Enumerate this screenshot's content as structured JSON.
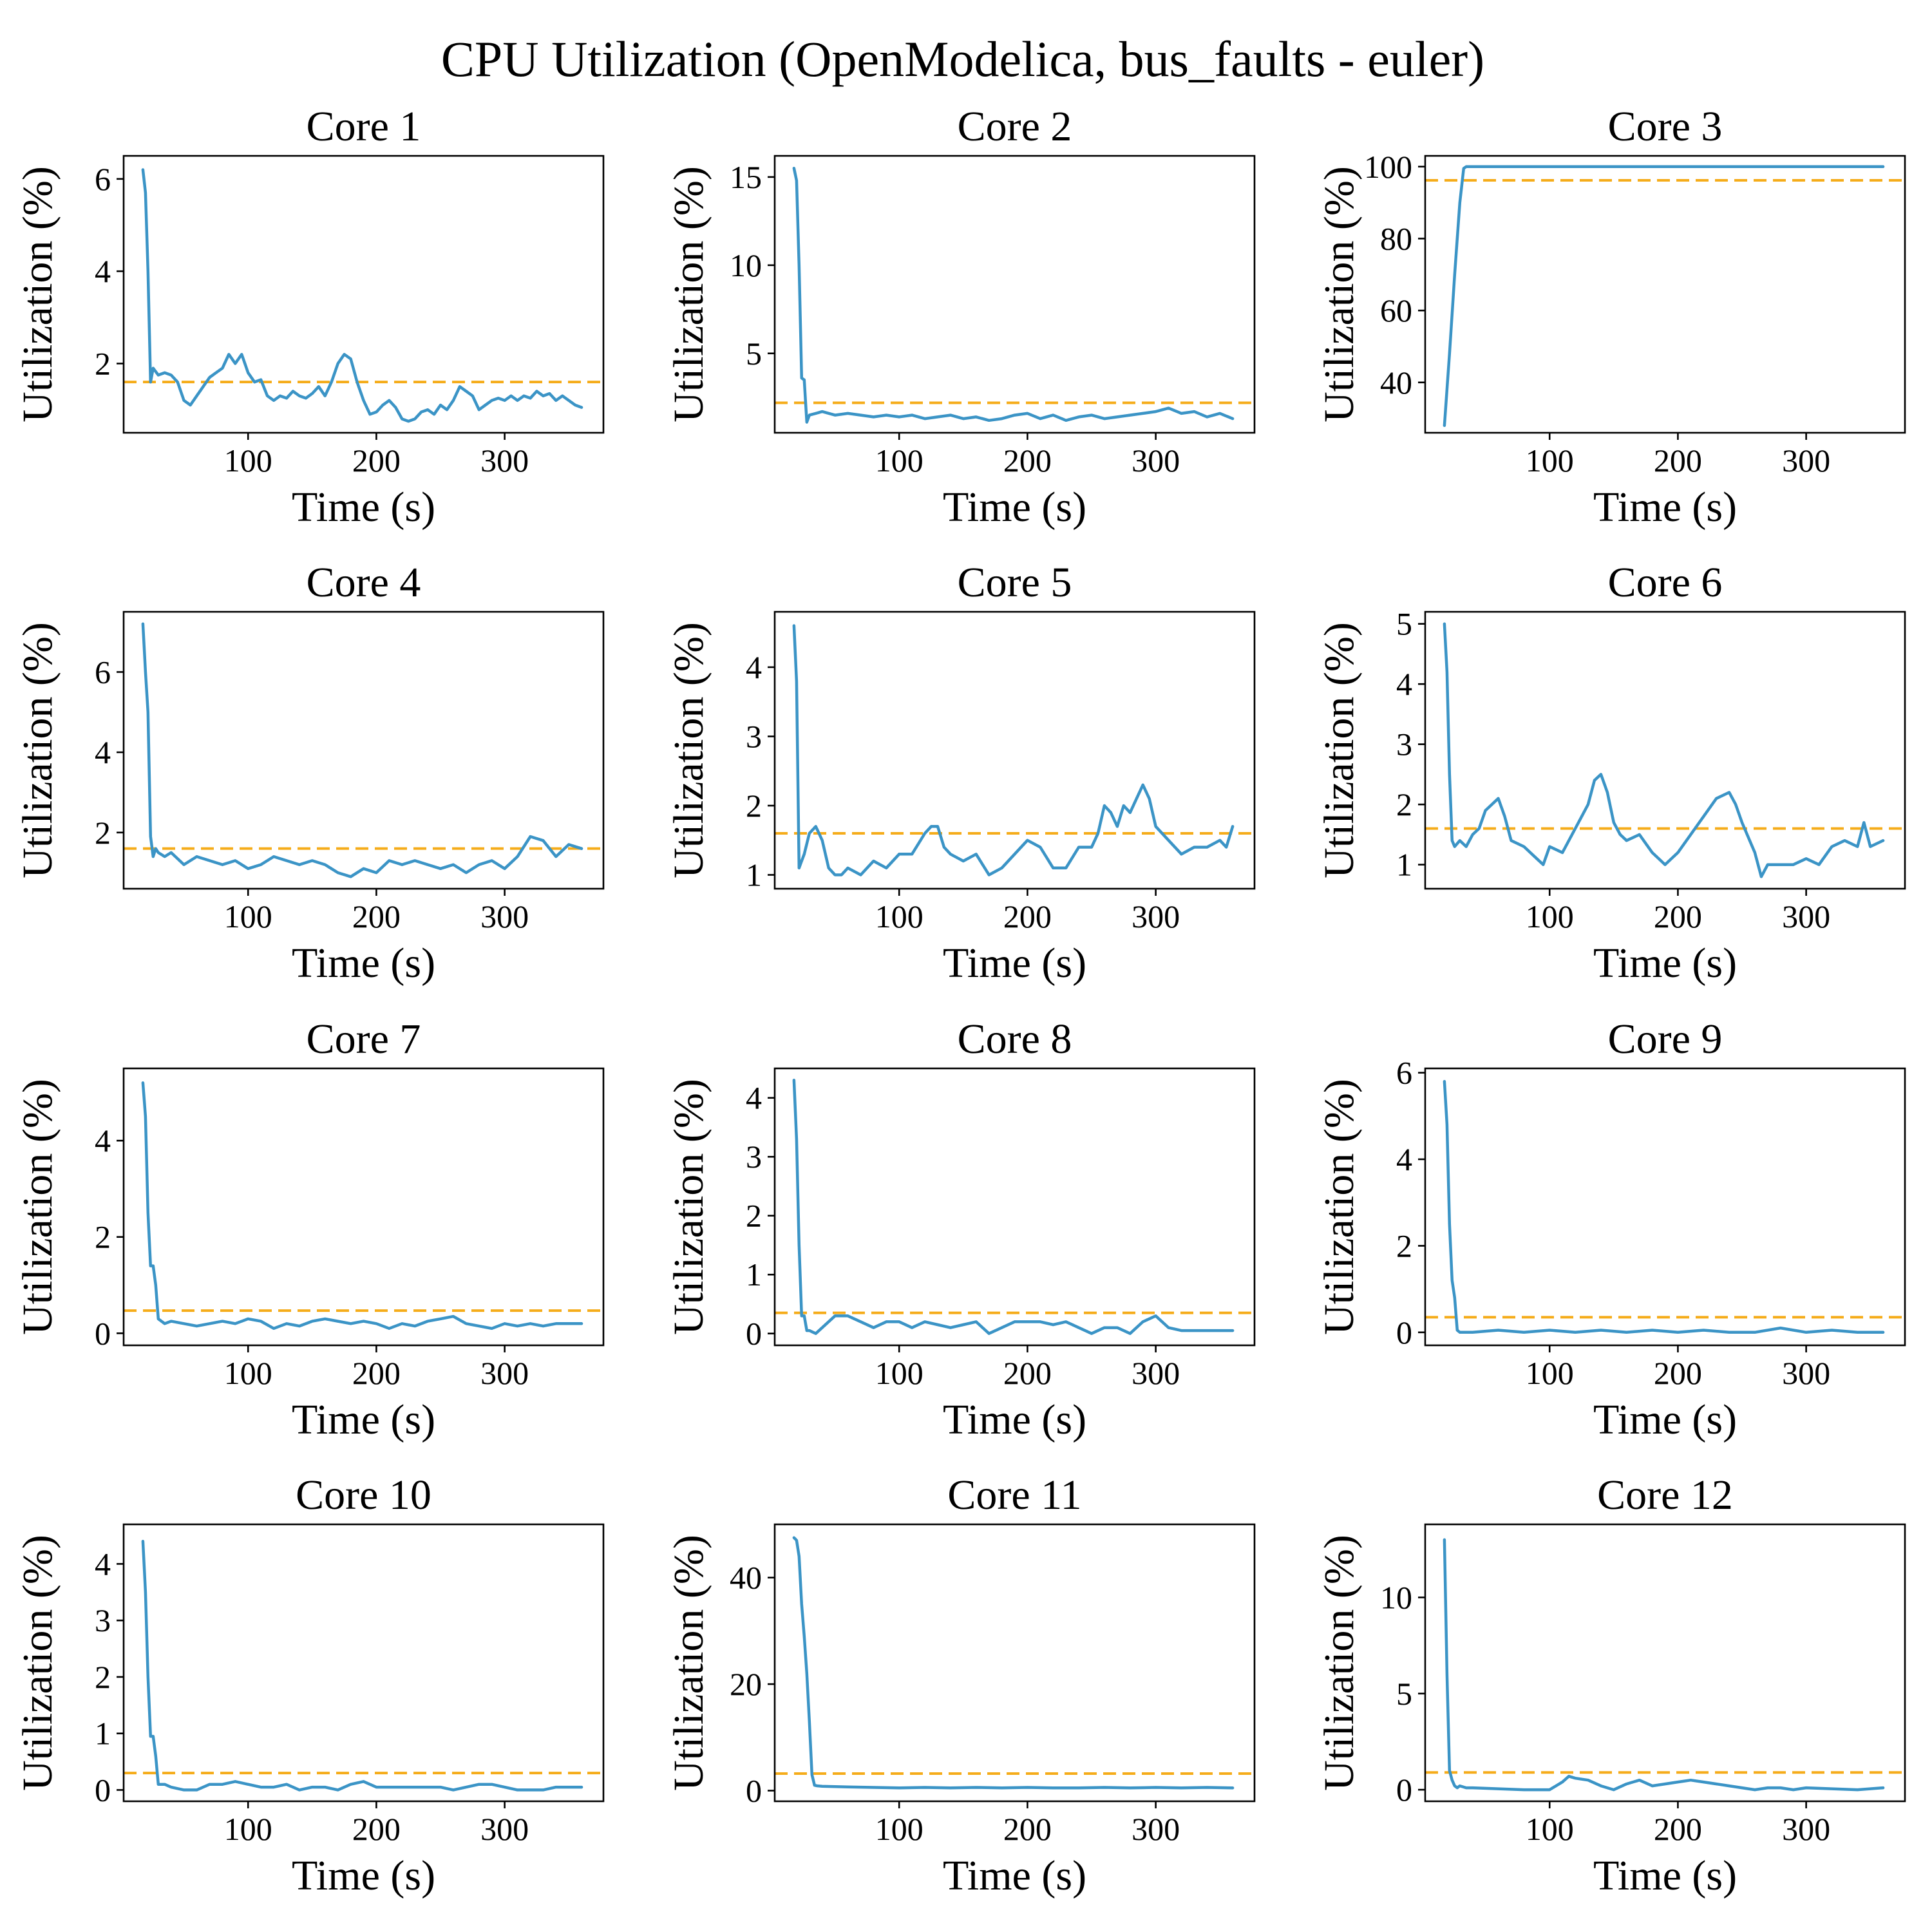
{
  "figure": {
    "title": "CPU Utilization (OpenModelica, bus_faults - euler)"
  },
  "colors": {
    "series": "#3b94c6",
    "mean": "#f5ac1a"
  },
  "chart_data": [
    {
      "type": "line",
      "title": "Core 1",
      "xlabel": "Time (s)",
      "ylabel": "Utilization (%)",
      "xlim": [
        3,
        377
      ],
      "ylim": [
        0.5,
        6.5
      ],
      "xticks": [
        100,
        200,
        300
      ],
      "yticks": [
        2,
        4,
        6
      ],
      "mean": 1.6,
      "x": [
        18,
        20,
        22,
        24,
        26,
        30,
        35,
        40,
        45,
        50,
        55,
        60,
        65,
        70,
        75,
        80,
        85,
        90,
        95,
        100,
        105,
        110,
        115,
        120,
        125,
        130,
        135,
        140,
        145,
        150,
        155,
        160,
        165,
        170,
        175,
        180,
        185,
        190,
        195,
        200,
        205,
        210,
        215,
        220,
        225,
        230,
        235,
        240,
        245,
        250,
        255,
        260,
        265,
        270,
        275,
        280,
        285,
        290,
        295,
        300,
        305,
        310,
        315,
        320,
        325,
        330,
        335,
        340,
        345,
        350,
        355,
        360
      ],
      "y": [
        6.2,
        5.7,
        4.0,
        1.6,
        1.9,
        1.75,
        1.8,
        1.75,
        1.6,
        1.2,
        1.1,
        1.3,
        1.5,
        1.7,
        1.8,
        1.9,
        2.2,
        2.0,
        2.2,
        1.8,
        1.6,
        1.65,
        1.3,
        1.2,
        1.3,
        1.25,
        1.4,
        1.3,
        1.25,
        1.35,
        1.5,
        1.3,
        1.6,
        2.0,
        2.2,
        2.1,
        1.6,
        1.2,
        0.9,
        0.95,
        1.1,
        1.2,
        1.05,
        0.8,
        0.75,
        0.8,
        0.95,
        1.0,
        0.9,
        1.1,
        1.0,
        1.2,
        1.5,
        1.4,
        1.3,
        1.0,
        1.1,
        1.2,
        1.25,
        1.2,
        1.3,
        1.2,
        1.3,
        1.25,
        1.4,
        1.3,
        1.35,
        1.2,
        1.3,
        1.2,
        1.1,
        1.05
      ]
    },
    {
      "type": "line",
      "title": "Core 2",
      "xlabel": "Time (s)",
      "ylabel": "Utilization (%)",
      "xlim": [
        3,
        377
      ],
      "ylim": [
        0.5,
        16.2
      ],
      "xticks": [
        100,
        200,
        300
      ],
      "yticks": [
        5,
        10,
        15
      ],
      "mean": 2.2,
      "x": [
        18,
        20,
        22,
        24,
        26,
        28,
        30,
        35,
        40,
        50,
        60,
        70,
        80,
        90,
        100,
        110,
        120,
        130,
        140,
        150,
        160,
        170,
        180,
        190,
        200,
        210,
        220,
        230,
        240,
        250,
        260,
        270,
        280,
        290,
        300,
        310,
        320,
        330,
        340,
        350,
        360
      ],
      "y": [
        15.5,
        14.8,
        10.0,
        3.6,
        3.5,
        1.1,
        1.5,
        1.6,
        1.7,
        1.5,
        1.6,
        1.5,
        1.4,
        1.5,
        1.4,
        1.5,
        1.3,
        1.4,
        1.5,
        1.3,
        1.4,
        1.2,
        1.3,
        1.5,
        1.6,
        1.3,
        1.5,
        1.2,
        1.4,
        1.5,
        1.3,
        1.4,
        1.5,
        1.6,
        1.7,
        1.9,
        1.6,
        1.7,
        1.4,
        1.6,
        1.3
      ]
    },
    {
      "type": "line",
      "title": "Core 3",
      "xlabel": "Time (s)",
      "ylabel": "Utilization (%)",
      "xlim": [
        3,
        377
      ],
      "ylim": [
        26,
        103
      ],
      "xticks": [
        100,
        200,
        300
      ],
      "yticks": [
        40,
        60,
        80,
        100
      ],
      "mean": 96.2,
      "x": [
        18,
        22,
        26,
        30,
        33,
        35,
        40,
        60,
        100,
        150,
        200,
        250,
        300,
        360
      ],
      "y": [
        28,
        48,
        70,
        90,
        99.5,
        100,
        100,
        100,
        100,
        100,
        100,
        100,
        100,
        100
      ]
    },
    {
      "type": "line",
      "title": "Core 4",
      "xlabel": "Time (s)",
      "ylabel": "Utilization (%)",
      "xlim": [
        3,
        377
      ],
      "ylim": [
        0.6,
        7.5
      ],
      "xticks": [
        100,
        200,
        300
      ],
      "yticks": [
        2,
        4,
        6
      ],
      "mean": 1.6,
      "x": [
        18,
        20,
        22,
        24,
        26,
        28,
        30,
        35,
        40,
        50,
        60,
        70,
        80,
        90,
        100,
        110,
        120,
        130,
        140,
        150,
        160,
        170,
        180,
        190,
        200,
        210,
        220,
        230,
        240,
        250,
        260,
        270,
        280,
        290,
        300,
        310,
        320,
        330,
        340,
        350,
        360
      ],
      "y": [
        7.2,
        6.0,
        5.0,
        1.9,
        1.4,
        1.6,
        1.5,
        1.4,
        1.5,
        1.2,
        1.4,
        1.3,
        1.2,
        1.3,
        1.1,
        1.2,
        1.4,
        1.3,
        1.2,
        1.3,
        1.2,
        1.0,
        0.9,
        1.1,
        1.0,
        1.3,
        1.2,
        1.3,
        1.2,
        1.1,
        1.2,
        1.0,
        1.2,
        1.3,
        1.1,
        1.4,
        1.9,
        1.8,
        1.4,
        1.7,
        1.6
      ]
    },
    {
      "type": "line",
      "title": "Core 5",
      "xlabel": "Time (s)",
      "ylabel": "Utilization (%)",
      "xlim": [
        3,
        377
      ],
      "ylim": [
        0.8,
        4.8
      ],
      "xticks": [
        100,
        200,
        300
      ],
      "yticks": [
        1,
        2,
        3,
        4
      ],
      "mean": 1.6,
      "x": [
        18,
        20,
        22,
        24,
        26,
        30,
        35,
        40,
        45,
        50,
        55,
        60,
        70,
        80,
        90,
        100,
        110,
        120,
        125,
        130,
        135,
        140,
        150,
        160,
        170,
        180,
        190,
        200,
        210,
        220,
        230,
        240,
        250,
        255,
        260,
        265,
        270,
        275,
        280,
        285,
        290,
        295,
        300,
        310,
        320,
        330,
        340,
        350,
        355,
        360
      ],
      "y": [
        4.6,
        3.8,
        1.1,
        1.2,
        1.3,
        1.6,
        1.7,
        1.5,
        1.1,
        1.0,
        1.0,
        1.1,
        1.0,
        1.2,
        1.1,
        1.3,
        1.3,
        1.6,
        1.7,
        1.7,
        1.4,
        1.3,
        1.2,
        1.3,
        1.0,
        1.1,
        1.3,
        1.5,
        1.4,
        1.1,
        1.1,
        1.4,
        1.4,
        1.6,
        2.0,
        1.9,
        1.7,
        2.0,
        1.9,
        2.1,
        2.3,
        2.1,
        1.7,
        1.5,
        1.3,
        1.4,
        1.4,
        1.5,
        1.4,
        1.7
      ]
    },
    {
      "type": "line",
      "title": "Core 6",
      "xlabel": "Time (s)",
      "ylabel": "Utilization (%)",
      "xlim": [
        3,
        377
      ],
      "ylim": [
        0.6,
        5.2
      ],
      "xticks": [
        100,
        200,
        300
      ],
      "yticks": [
        1,
        2,
        3,
        4,
        5
      ],
      "mean": 1.6,
      "x": [
        18,
        20,
        22,
        24,
        26,
        30,
        35,
        40,
        45,
        50,
        55,
        60,
        65,
        70,
        80,
        90,
        95,
        100,
        110,
        120,
        130,
        135,
        140,
        145,
        150,
        155,
        160,
        170,
        180,
        190,
        200,
        210,
        220,
        230,
        240,
        245,
        250,
        260,
        265,
        270,
        280,
        290,
        300,
        310,
        320,
        330,
        340,
        345,
        350,
        360
      ],
      "y": [
        5.0,
        4.2,
        2.5,
        1.4,
        1.3,
        1.4,
        1.3,
        1.5,
        1.6,
        1.9,
        2.0,
        2.1,
        1.8,
        1.4,
        1.3,
        1.1,
        1.0,
        1.3,
        1.2,
        1.6,
        2.0,
        2.4,
        2.5,
        2.2,
        1.7,
        1.5,
        1.4,
        1.5,
        1.2,
        1.0,
        1.2,
        1.5,
        1.8,
        2.1,
        2.2,
        2.0,
        1.7,
        1.2,
        0.8,
        1.0,
        1.0,
        1.0,
        1.1,
        1.0,
        1.3,
        1.4,
        1.3,
        1.7,
        1.3,
        1.4
      ]
    },
    {
      "type": "line",
      "title": "Core 7",
      "xlabel": "Time (s)",
      "ylabel": "Utilization (%)",
      "xlim": [
        3,
        377
      ],
      "ylim": [
        -0.25,
        5.5
      ],
      "xticks": [
        100,
        200,
        300
      ],
      "yticks": [
        0,
        2,
        4
      ],
      "mean": 0.47,
      "x": [
        18,
        20,
        22,
        24,
        26,
        28,
        30,
        35,
        40,
        50,
        60,
        70,
        80,
        90,
        100,
        110,
        120,
        130,
        140,
        150,
        160,
        170,
        180,
        190,
        200,
        210,
        220,
        230,
        240,
        250,
        260,
        270,
        280,
        290,
        300,
        310,
        320,
        330,
        340,
        350,
        360
      ],
      "y": [
        5.2,
        4.5,
        2.5,
        1.4,
        1.4,
        1.0,
        0.3,
        0.2,
        0.25,
        0.2,
        0.15,
        0.2,
        0.25,
        0.2,
        0.3,
        0.25,
        0.1,
        0.2,
        0.15,
        0.25,
        0.3,
        0.25,
        0.2,
        0.25,
        0.2,
        0.1,
        0.2,
        0.15,
        0.25,
        0.3,
        0.35,
        0.2,
        0.15,
        0.1,
        0.2,
        0.15,
        0.2,
        0.15,
        0.2,
        0.2,
        0.2
      ]
    },
    {
      "type": "line",
      "title": "Core 8",
      "xlabel": "Time (s)",
      "ylabel": "Utilization (%)",
      "xlim": [
        3,
        377
      ],
      "ylim": [
        -0.2,
        4.5
      ],
      "xticks": [
        100,
        200,
        300
      ],
      "yticks": [
        0,
        1,
        2,
        3,
        4
      ],
      "mean": 0.35,
      "x": [
        18,
        20,
        22,
        24,
        26,
        28,
        30,
        35,
        40,
        50,
        60,
        70,
        80,
        90,
        100,
        110,
        120,
        130,
        140,
        150,
        160,
        170,
        180,
        190,
        200,
        210,
        220,
        230,
        240,
        250,
        260,
        270,
        280,
        290,
        300,
        310,
        320,
        330,
        340,
        350,
        360
      ],
      "y": [
        4.3,
        3.3,
        1.5,
        0.3,
        0.3,
        0.05,
        0.05,
        0.0,
        0.1,
        0.3,
        0.3,
        0.2,
        0.1,
        0.2,
        0.2,
        0.1,
        0.2,
        0.15,
        0.1,
        0.15,
        0.2,
        0.0,
        0.1,
        0.2,
        0.2,
        0.2,
        0.15,
        0.2,
        0.1,
        0.0,
        0.1,
        0.1,
        0.0,
        0.2,
        0.3,
        0.1,
        0.05,
        0.05,
        0.05,
        0.05,
        0.05
      ]
    },
    {
      "type": "line",
      "title": "Core 9",
      "xlabel": "Time (s)",
      "ylabel": "Utilization (%)",
      "xlim": [
        3,
        377
      ],
      "ylim": [
        -0.3,
        6.1
      ],
      "xticks": [
        100,
        200,
        300
      ],
      "yticks": [
        0,
        2,
        4,
        6
      ],
      "mean": 0.35,
      "x": [
        18,
        20,
        22,
        24,
        26,
        28,
        30,
        35,
        40,
        60,
        80,
        100,
        120,
        140,
        160,
        180,
        200,
        220,
        240,
        260,
        280,
        300,
        320,
        340,
        360
      ],
      "y": [
        5.8,
        4.8,
        2.5,
        1.2,
        0.8,
        0.05,
        0.0,
        0.0,
        0.0,
        0.05,
        0.0,
        0.05,
        0.0,
        0.05,
        0.0,
        0.05,
        0.0,
        0.05,
        0.0,
        0.0,
        0.1,
        0.0,
        0.05,
        0.0,
        0.0
      ]
    },
    {
      "type": "line",
      "title": "Core 10",
      "xlabel": "Time (s)",
      "ylabel": "Utilization (%)",
      "xlim": [
        3,
        377
      ],
      "ylim": [
        -0.2,
        4.7
      ],
      "xticks": [
        100,
        200,
        300
      ],
      "yticks": [
        0,
        1,
        2,
        3,
        4
      ],
      "mean": 0.3,
      "x": [
        18,
        20,
        22,
        24,
        26,
        28,
        30,
        35,
        40,
        50,
        60,
        70,
        80,
        90,
        100,
        110,
        120,
        130,
        140,
        150,
        160,
        170,
        180,
        190,
        200,
        210,
        220,
        230,
        240,
        250,
        260,
        270,
        280,
        290,
        300,
        310,
        320,
        330,
        340,
        350,
        360
      ],
      "y": [
        4.4,
        3.5,
        2.0,
        0.95,
        0.95,
        0.6,
        0.1,
        0.1,
        0.05,
        0.0,
        0.0,
        0.1,
        0.1,
        0.15,
        0.1,
        0.05,
        0.05,
        0.1,
        0.0,
        0.05,
        0.05,
        0.0,
        0.1,
        0.15,
        0.05,
        0.05,
        0.05,
        0.05,
        0.05,
        0.05,
        0.0,
        0.05,
        0.1,
        0.1,
        0.05,
        0.0,
        0.0,
        0.0,
        0.05,
        0.05,
        0.05
      ]
    },
    {
      "type": "line",
      "title": "Core 11",
      "xlabel": "Time (s)",
      "ylabel": "Utilization (%)",
      "xlim": [
        3,
        377
      ],
      "ylim": [
        -2,
        50
      ],
      "xticks": [
        100,
        200,
        300
      ],
      "yticks": [
        0,
        20,
        40
      ],
      "mean": 3.2,
      "x": [
        18,
        20,
        22,
        24,
        26,
        28,
        30,
        32,
        34,
        36,
        40,
        60,
        80,
        100,
        120,
        140,
        160,
        180,
        200,
        220,
        240,
        260,
        280,
        300,
        320,
        340,
        360
      ],
      "y": [
        47.5,
        47,
        44,
        35,
        29,
        22,
        13,
        3,
        1.0,
        0.9,
        0.8,
        0.7,
        0.6,
        0.5,
        0.6,
        0.5,
        0.6,
        0.5,
        0.6,
        0.5,
        0.5,
        0.6,
        0.5,
        0.6,
        0.5,
        0.6,
        0.5
      ]
    },
    {
      "type": "line",
      "title": "Core 12",
      "xlabel": "Time (s)",
      "ylabel": "Utilization (%)",
      "xlim": [
        3,
        377
      ],
      "ylim": [
        -0.6,
        13.8
      ],
      "xticks": [
        100,
        200,
        300
      ],
      "yticks": [
        0,
        5,
        10
      ],
      "mean": 0.9,
      "x": [
        18,
        20,
        22,
        24,
        26,
        28,
        30,
        35,
        40,
        60,
        80,
        100,
        110,
        115,
        120,
        130,
        140,
        150,
        160,
        170,
        180,
        190,
        200,
        210,
        220,
        230,
        240,
        250,
        260,
        270,
        280,
        290,
        300,
        320,
        340,
        360
      ],
      "y": [
        13,
        6.0,
        1.0,
        0.5,
        0.2,
        0.1,
        0.2,
        0.1,
        0.1,
        0.05,
        0.0,
        0.0,
        0.4,
        0.7,
        0.6,
        0.5,
        0.2,
        0.0,
        0.3,
        0.5,
        0.2,
        0.3,
        0.4,
        0.5,
        0.4,
        0.3,
        0.2,
        0.1,
        0.0,
        0.1,
        0.1,
        0.0,
        0.1,
        0.05,
        0.0,
        0.1
      ]
    }
  ]
}
